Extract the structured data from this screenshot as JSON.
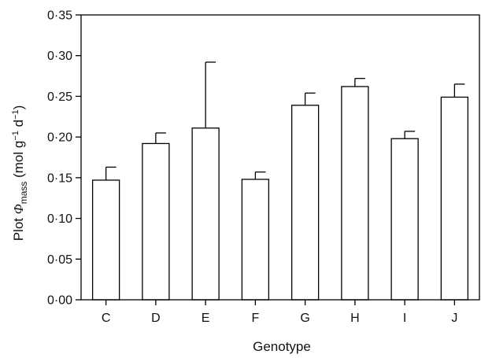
{
  "chart_data": {
    "type": "bar",
    "categories": [
      "C",
      "D",
      "E",
      "F",
      "G",
      "H",
      "I",
      "J"
    ],
    "values": [
      0.147,
      0.192,
      0.211,
      0.148,
      0.239,
      0.262,
      0.198,
      0.249
    ],
    "errors": [
      0.016,
      0.013,
      0.081,
      0.009,
      0.015,
      0.01,
      0.009,
      0.016
    ],
    "xlabel": "Genotype",
    "ylabel": {
      "prefix": "Plot ",
      "symbol": "Φ",
      "subscript": "mass",
      "units_open": " (mol g",
      "sup1": "−1",
      "units_mid": " d",
      "sup2": "−1",
      "units_close": ")"
    },
    "ylim": [
      0,
      0.35
    ],
    "yticks": [
      "0·00",
      "0·05",
      "0·10",
      "0·15",
      "0·20",
      "0·25",
      "0·30",
      "0·35"
    ],
    "grid": false,
    "bar_color": "#ffffff",
    "edge_color": "#000000"
  }
}
